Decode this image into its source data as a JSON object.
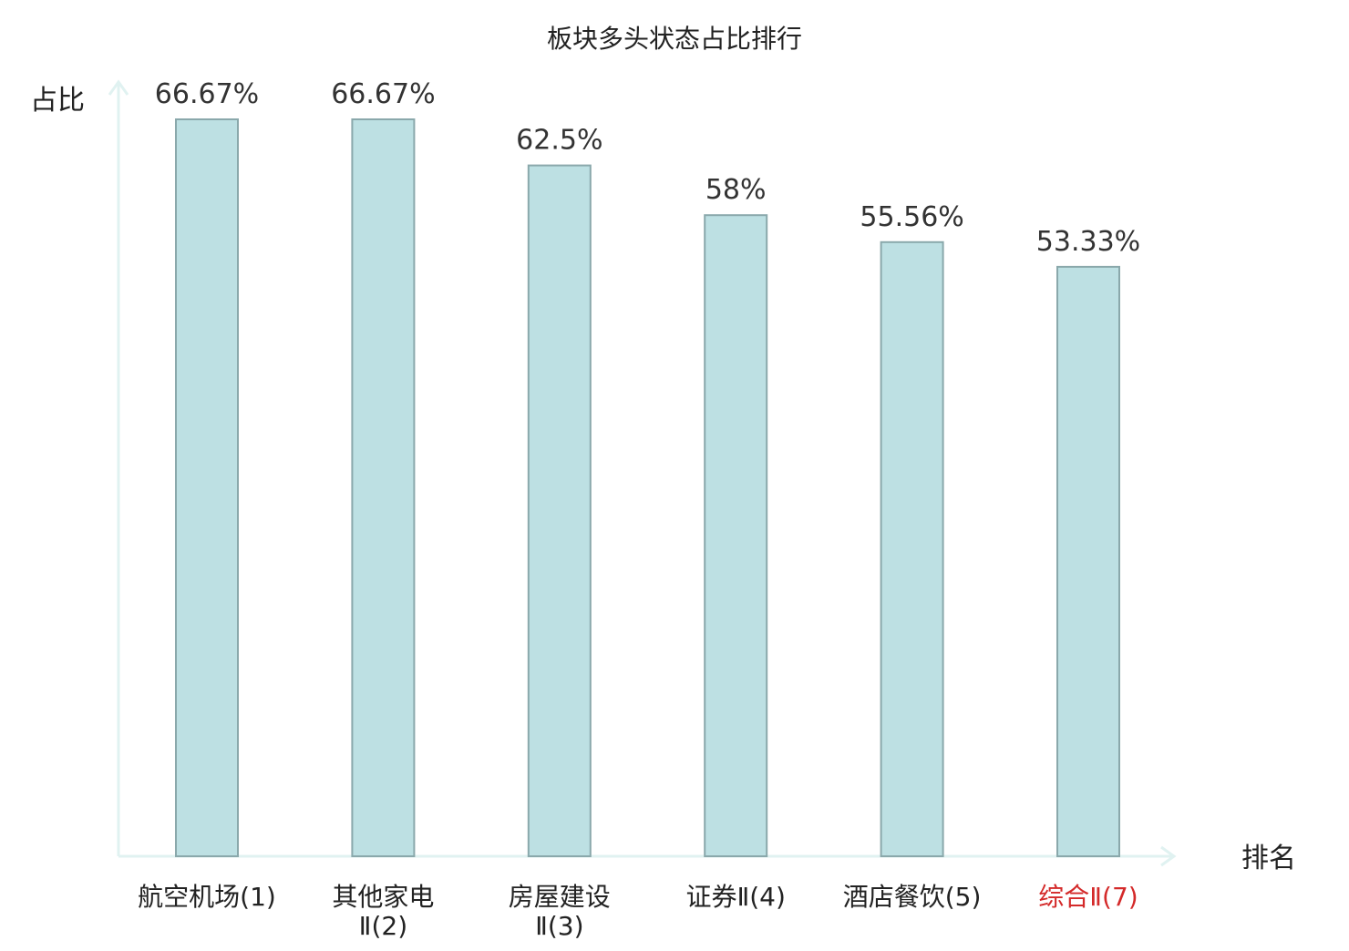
{
  "chart_data": {
    "type": "bar",
    "title": "板块多头状态占比排行",
    "ylabel": "占比",
    "xlabel": "排名",
    "categories": [
      [
        "航空机场(1)"
      ],
      [
        "其他家电",
        "Ⅱ(2)"
      ],
      [
        "房屋建设",
        "Ⅱ(3)"
      ],
      [
        "证券Ⅱ(4)"
      ],
      [
        "酒店餐饮(5)"
      ],
      [
        "综合Ⅱ(7)"
      ]
    ],
    "values": [
      66.67,
      66.67,
      62.5,
      58,
      55.56,
      53.33
    ],
    "value_labels": [
      "66.67%",
      "66.67%",
      "62.5%",
      "58%",
      "55.56%",
      "53.33%"
    ],
    "highlight_index": 5,
    "ylim": [
      0,
      66.67
    ],
    "grid": false,
    "colors": {
      "bar_fill": "#bde0e3",
      "bar_stroke": "#8aa8ab",
      "axis": "#e0f2f1",
      "text": "#333333",
      "highlight_text": "#d42a2a"
    }
  }
}
